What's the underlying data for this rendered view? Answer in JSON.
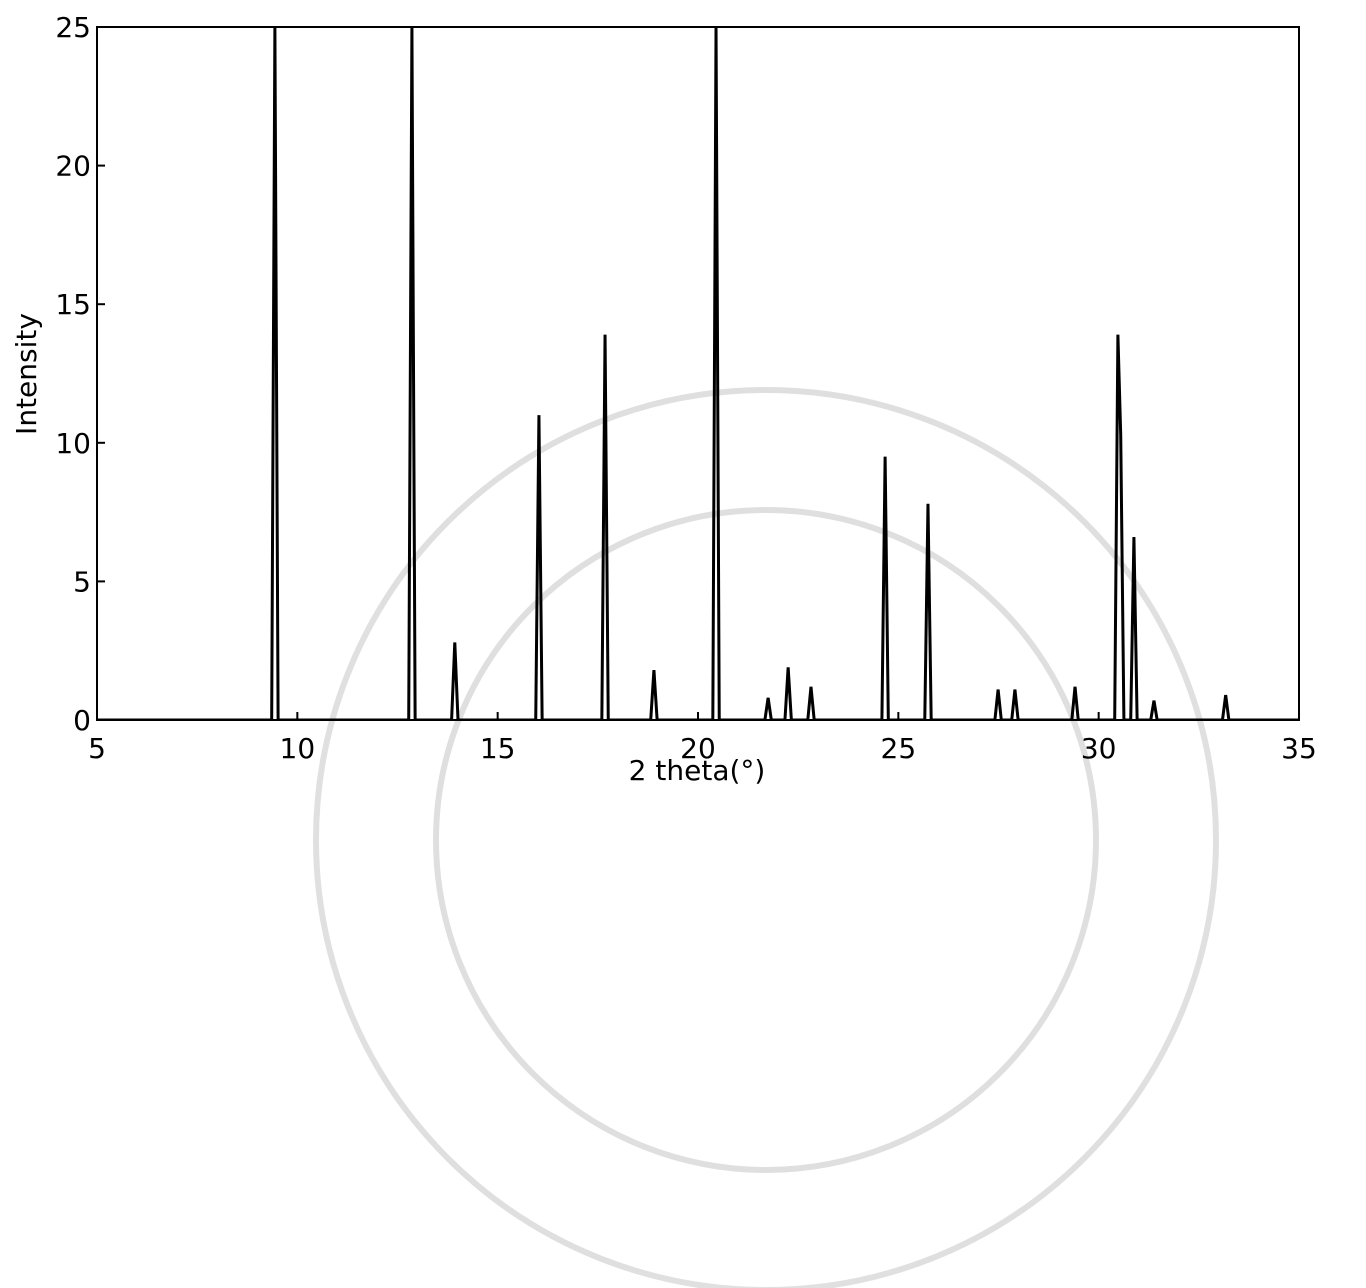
{
  "chart_data": {
    "type": "line",
    "x_label": "2 theta(°)",
    "y_label": "Intensity",
    "x": [
      5,
      9.36,
      9.44,
      9.52,
      12.78,
      12.86,
      12.94,
      13.85,
      13.93,
      14.01,
      15.95,
      16.03,
      16.11,
      17.6,
      17.68,
      17.76,
      18.82,
      18.9,
      18.98,
      20.37,
      20.45,
      20.53,
      21.67,
      21.75,
      21.83,
      22.17,
      22.25,
      22.33,
      22.74,
      22.82,
      22.9,
      24.59,
      24.67,
      24.75,
      25.66,
      25.74,
      25.82,
      27.41,
      27.49,
      27.57,
      27.83,
      27.91,
      27.99,
      29.33,
      29.41,
      29.49,
      30.4,
      30.48,
      30.55,
      30.63,
      30.8,
      30.88,
      30.96,
      31.3,
      31.38,
      31.46,
      33.09,
      33.17,
      33.25,
      35
    ],
    "values": [
      0,
      0,
      25,
      0,
      0,
      25,
      0,
      0,
      2.8,
      0,
      0,
      11,
      0,
      0,
      13.9,
      0,
      0,
      1.8,
      0,
      0,
      25,
      0,
      0,
      0.8,
      0,
      0,
      1.9,
      0,
      0,
      1.2,
      0,
      0,
      9.5,
      0,
      0,
      7.8,
      0,
      0,
      1.1,
      0,
      0,
      1.1,
      0,
      0,
      1.2,
      0,
      0,
      13.9,
      10.3,
      0,
      0,
      6.6,
      0,
      0,
      0.7,
      0,
      0,
      0.9,
      0,
      0
    ],
    "color": "#000000",
    "xlim": [
      5,
      35
    ],
    "xticks": [
      5,
      10,
      15,
      20,
      25,
      30,
      35
    ],
    "ylim": [
      0,
      25
    ],
    "yticks": [
      0,
      5,
      10,
      15,
      20,
      25
    ]
  }
}
